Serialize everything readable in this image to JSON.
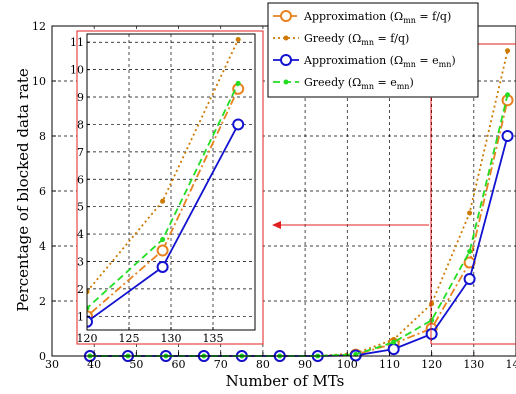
{
  "chart_data": {
    "type": "line",
    "xlabel": "Number of MTs",
    "ylabel": "Percentage of blocked data rate",
    "xlim": [
      30,
      140
    ],
    "ylim": [
      0,
      12
    ],
    "x_ticks": [
      "30",
      "40",
      "50",
      "60",
      "70",
      "80",
      "90",
      "100",
      "110",
      "120",
      "130",
      "140"
    ],
    "y_ticks": [
      "0",
      "2",
      "4",
      "6",
      "8",
      "10",
      "12"
    ],
    "grid": true,
    "legend_position": "top-right",
    "x": [
      39,
      48,
      57,
      66,
      75,
      84,
      93,
      102,
      111,
      120,
      129,
      138
    ],
    "series": [
      {
        "name": "Approximation (Ωmn = fmn/qm)",
        "legend_main": "Approximation (Ω",
        "legend_sub": "mn",
        "legend_tail": " = f/q)",
        "color": "#E8821E",
        "dash": "8,3,2,3",
        "marker": "circle",
        "values": [
          0,
          0,
          0,
          0,
          0,
          0,
          0,
          0.05,
          0.45,
          1.0,
          3.4,
          9.3
        ]
      },
      {
        "name": "Greedy (Ωmn = fmn/qm)",
        "legend_main": "Greedy (Ω",
        "legend_sub": "mn",
        "legend_tail": " = f/q)",
        "color": "#CC7A00",
        "dash": "2,3",
        "marker": "dot",
        "values": [
          0,
          0,
          0,
          0,
          0,
          0,
          0,
          0.1,
          0.6,
          1.9,
          5.2,
          11.1
        ]
      },
      {
        "name": "Approximation (Ωmn = emn)",
        "legend_main": "Approximation (Ω",
        "legend_sub": "mn",
        "legend_tail": " = e",
        "legend_sub2": "mn",
        "color": "#1212D0",
        "dash": "",
        "marker": "circle",
        "values": [
          0,
          0,
          0,
          0,
          0,
          0,
          0,
          0.02,
          0.25,
          0.8,
          2.8,
          8.0
        ]
      },
      {
        "name": "Greedy (Ωmn = emn)",
        "legend_main": "Greedy (Ω",
        "legend_sub": "mn",
        "legend_tail": " = e",
        "legend_sub2": "mn",
        "color": "#22DD22",
        "dash": "7,4",
        "marker": "dot",
        "values": [
          0,
          0,
          0,
          0,
          0,
          0,
          0,
          0.06,
          0.5,
          1.3,
          3.8,
          9.5
        ]
      }
    ],
    "inset": {
      "xlim": [
        120,
        140
      ],
      "ylim": [
        0.5,
        11.3
      ],
      "x_ticks": [
        "120",
        "125",
        "130",
        "135"
      ],
      "y_ticks": [
        "1",
        "2",
        "3",
        "4",
        "5",
        "6",
        "7",
        "8",
        "9",
        "10",
        "11"
      ]
    }
  }
}
